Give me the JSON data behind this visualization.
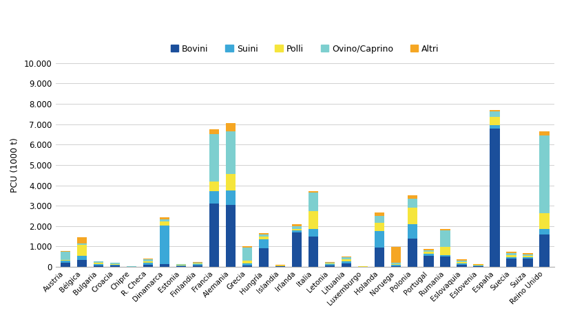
{
  "countries": [
    "Austria",
    "Bélgica",
    "Bulgaria",
    "Croacia",
    "Chipre",
    "R. Checa",
    "Dinamarca",
    "Estonia",
    "Finlandia",
    "Francia",
    "Alemania",
    "Grecia",
    "Hungría",
    "Islandia",
    "Irlanda",
    "Italia",
    "Letonia",
    "Lituania",
    "Luxemburgo",
    "Holanda",
    "Noruega",
    "Polonia",
    "Portugal",
    "Rumania",
    "Eslovaquia",
    "Eslovenia",
    "España",
    "Suecia",
    "Suiza",
    "Reino Unido"
  ],
  "Bovini": [
    200,
    350,
    80,
    80,
    5,
    120,
    130,
    50,
    80,
    3100,
    3050,
    80,
    900,
    30,
    1700,
    1500,
    80,
    180,
    15,
    950,
    50,
    1400,
    550,
    500,
    100,
    50,
    6800,
    400,
    400,
    1600
  ],
  "Suini": [
    100,
    180,
    70,
    40,
    5,
    80,
    1900,
    30,
    50,
    600,
    700,
    80,
    450,
    20,
    80,
    350,
    60,
    80,
    5,
    800,
    50,
    700,
    100,
    80,
    60,
    20,
    150,
    80,
    80,
    250
  ],
  "Polli": [
    50,
    550,
    70,
    30,
    10,
    80,
    200,
    25,
    30,
    500,
    800,
    150,
    150,
    15,
    80,
    900,
    40,
    120,
    5,
    400,
    40,
    800,
    80,
    400,
    80,
    20,
    400,
    90,
    70,
    800
  ],
  "OvinoCaprino": [
    380,
    80,
    50,
    50,
    20,
    80,
    100,
    25,
    50,
    2300,
    2100,
    650,
    80,
    20,
    150,
    900,
    40,
    80,
    5,
    350,
    50,
    450,
    80,
    800,
    80,
    20,
    280,
    100,
    70,
    3800
  ],
  "Altri": [
    50,
    280,
    20,
    15,
    5,
    40,
    100,
    25,
    40,
    250,
    400,
    40,
    80,
    15,
    80,
    80,
    25,
    40,
    5,
    180,
    800,
    150,
    80,
    80,
    40,
    20,
    80,
    60,
    60,
    200
  ],
  "colors": {
    "Bovini": "#1B4F9B",
    "Suini": "#3BA8D8",
    "Polli": "#F5E53B",
    "OvinoCaprino": "#7DCFCF",
    "Altri": "#F5A623"
  },
  "ylabel": "PCU (1000 t)",
  "ylim": [
    0,
    10000
  ],
  "yticks": [
    0,
    1000,
    2000,
    3000,
    4000,
    5000,
    6000,
    7000,
    8000,
    9000,
    10000
  ],
  "ytick_labels": [
    "0",
    "1.000",
    "2.000",
    "3.000",
    "4.000",
    "5.000",
    "6.000",
    "7.000",
    "8.000",
    "9.000",
    "10.000"
  ],
  "legend_labels": [
    "Bovini",
    "Suini",
    "Polli",
    "Ovino/Caprino",
    "Altri"
  ],
  "legend_colors": [
    "#1B4F9B",
    "#3BA8D8",
    "#F5E53B",
    "#7DCFCF",
    "#F5A623"
  ]
}
